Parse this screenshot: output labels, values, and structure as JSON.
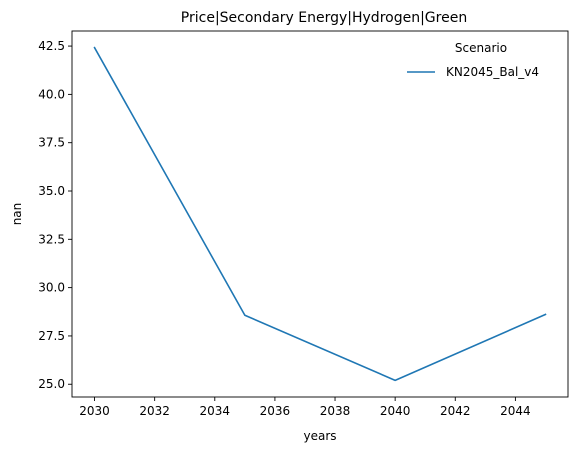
{
  "chart_data": {
    "type": "line",
    "title": "Price|Secondary Energy|Hydrogen|Green",
    "xlabel": "years",
    "ylabel": "nan",
    "xlim": [
      2029.25,
      2045.75
    ],
    "ylim": [
      24.34,
      43.28
    ],
    "xticks": [
      2030,
      2032,
      2034,
      2036,
      2038,
      2040,
      2042,
      2044
    ],
    "xtick_labels": [
      "2030",
      "2032",
      "2034",
      "2036",
      "2038",
      "2040",
      "2042",
      "2044"
    ],
    "yticks": [
      25.0,
      27.5,
      30.0,
      32.5,
      35.0,
      37.5,
      40.0,
      42.5
    ],
    "ytick_labels": [
      "25.0",
      "27.5",
      "30.0",
      "32.5",
      "35.0",
      "37.5",
      "40.0",
      "42.5"
    ],
    "grid": false,
    "legend": {
      "title": "Scenario",
      "placement": "upper-right"
    },
    "series": [
      {
        "name": "KN2045_Bal_v4",
        "color": "#1f77b4",
        "x": [
          2030,
          2035,
          2040,
          2045
        ],
        "y": [
          42.42,
          28.57,
          25.2,
          28.61
        ]
      }
    ]
  }
}
